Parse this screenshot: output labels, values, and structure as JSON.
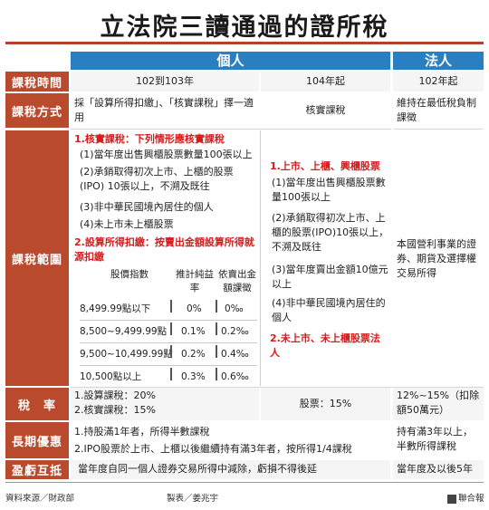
{
  "title": "立法院三讀通過的證所稅",
  "headers": {
    "individual": "個人",
    "corporate": "法人"
  },
  "rows": {
    "time": {
      "label": "課稅時間",
      "col1": "102到103年",
      "col2": "104年起",
      "corp": "102年起"
    },
    "method": {
      "label": "課稅方式",
      "col1": "採「設算所得扣繳」、「核實課稅」擇一適用",
      "col2": "核實課稅",
      "corp": "維持在最低稅負制課徵"
    },
    "scope": {
      "label": "課稅範圍",
      "col1_h1": "1.核實課稅：下列情形應核實課稅",
      "col1_items": [
        "(1)當年度出售興櫃股票數量100張以上",
        "(2)承銷取得初次上市、上櫃的股票(IPO) 10張以上，不溯及既往",
        "(3)非中華民國境內居住的個人",
        "(4)未上市未上櫃股票"
      ],
      "col1_h2": "2.設算所得扣繳：按賣出金額設算所得就源扣繳",
      "table_headers": [
        "股價指數",
        "推計純益率",
        "依賣出金額課徵"
      ],
      "table_rows": [
        [
          "8,499.99點以下",
          "0%",
          "0‰"
        ],
        [
          "8,500~9,499.99點",
          "0.1%",
          "0.2‰"
        ],
        [
          "9,500~10,499.99點",
          "0.2%",
          "0.4‰"
        ],
        [
          "10,500點以上",
          "0.3%",
          "0.6‰"
        ]
      ],
      "col2_h1": "1.上市、上櫃、興櫃股票",
      "col2_items": [
        "(1)當年度出售興櫃股票數量100張以上",
        "(2)承銷取得初次上市、上櫃的股票(IPO)10張以上，不溯及既往",
        "(3)當年度賣出金額10億元以上",
        "(4)非中華民國境內居住的個人"
      ],
      "col2_h2": "2.未上市、未上櫃股票法人",
      "corp": "本國營利事業的證券、期貨及選擇權交易所得"
    },
    "rate": {
      "label": "稅　率",
      "col1_a": "1.設算課稅：20%",
      "col1_b": "2.核實課稅：15%",
      "col2": "股票：15%",
      "corp": "12%~15%（扣除額50萬元）"
    },
    "incentive": {
      "label": "長期優惠",
      "ind_a": "1.持股滿1年者，所得半數課稅",
      "ind_b": "2.IPO股票於上市、上櫃以後繼續持有滿3年者，按所得1/4課稅",
      "corp": "持有滿3年以上，半數所得課稅"
    },
    "offset": {
      "label": "盈虧互抵",
      "ind": "當年度自同一個人證券交易所得中減除，虧損不得後延",
      "corp": "當年度及以後5年"
    }
  },
  "footer": {
    "source": "資料來源／財政部",
    "maker": "製表／姜兆宇",
    "publisher": "聯合報"
  }
}
